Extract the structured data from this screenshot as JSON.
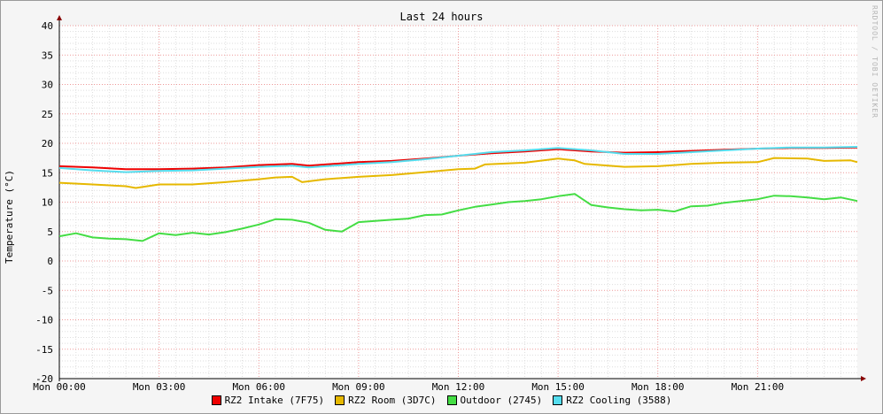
{
  "chart_data": {
    "type": "line",
    "title": "Last 24 hours",
    "ylabel": "Temperature (°C)",
    "xlabel": "",
    "watermark": "RRDTOOL / TOBI OETIKER",
    "ylim": [
      -20,
      40
    ],
    "yticks": [
      "40",
      "35",
      "30",
      "25",
      "20",
      "15",
      "10",
      "5",
      "0",
      "-5",
      "-10",
      "-15",
      "-20"
    ],
    "xlim": [
      0,
      24
    ],
    "xticks": [
      {
        "t": 0,
        "label": "Mon 00:00"
      },
      {
        "t": 3,
        "label": "Mon 03:00"
      },
      {
        "t": 6,
        "label": "Mon 06:00"
      },
      {
        "t": 9,
        "label": "Mon 09:00"
      },
      {
        "t": 12,
        "label": "Mon 12:00"
      },
      {
        "t": 15,
        "label": "Mon 15:00"
      },
      {
        "t": 18,
        "label": "Mon 18:00"
      },
      {
        "t": 21,
        "label": "Mon 21:00"
      }
    ],
    "grid": true,
    "legend_position": "bottom",
    "series": [
      {
        "name": "RZ2 Intake (7F75)",
        "color": "#ee0000",
        "points": [
          [
            0,
            16.1
          ],
          [
            1,
            15.9
          ],
          [
            2,
            15.6
          ],
          [
            3,
            15.6
          ],
          [
            4,
            15.7
          ],
          [
            5,
            15.9
          ],
          [
            6,
            16.3
          ],
          [
            7,
            16.5
          ],
          [
            7.5,
            16.2
          ],
          [
            8,
            16.4
          ],
          [
            9,
            16.8
          ],
          [
            10,
            17.0
          ],
          [
            11,
            17.4
          ],
          [
            12,
            17.9
          ],
          [
            13,
            18.3
          ],
          [
            14,
            18.6
          ],
          [
            15,
            19.0
          ],
          [
            16,
            18.6
          ],
          [
            17,
            18.4
          ],
          [
            18,
            18.5
          ],
          [
            19,
            18.7
          ],
          [
            20,
            18.9
          ],
          [
            21,
            19.1
          ],
          [
            22,
            19.2
          ],
          [
            23,
            19.2
          ],
          [
            24,
            19.3
          ]
        ]
      },
      {
        "name": "RZ2 Room (3D7C)",
        "color": "#e6b800",
        "points": [
          [
            0,
            13.3
          ],
          [
            1,
            13.0
          ],
          [
            2,
            12.7
          ],
          [
            2.3,
            12.4
          ],
          [
            3,
            13.0
          ],
          [
            4,
            13.0
          ],
          [
            5,
            13.4
          ],
          [
            6,
            13.9
          ],
          [
            6.5,
            14.2
          ],
          [
            7,
            14.3
          ],
          [
            7.3,
            13.4
          ],
          [
            8,
            13.9
          ],
          [
            9,
            14.3
          ],
          [
            10,
            14.6
          ],
          [
            11,
            15.1
          ],
          [
            12,
            15.6
          ],
          [
            12.5,
            15.7
          ],
          [
            12.8,
            16.4
          ],
          [
            14,
            16.7
          ],
          [
            15,
            17.4
          ],
          [
            15.5,
            17.1
          ],
          [
            15.8,
            16.5
          ],
          [
            17,
            16.0
          ],
          [
            18,
            16.1
          ],
          [
            19,
            16.5
          ],
          [
            20,
            16.7
          ],
          [
            21,
            16.8
          ],
          [
            21.5,
            17.5
          ],
          [
            22.5,
            17.4
          ],
          [
            23,
            17.0
          ],
          [
            23.8,
            17.1
          ],
          [
            24,
            16.8
          ]
        ]
      },
      {
        "name": "Outdoor (2745)",
        "color": "#44dd44",
        "points": [
          [
            0,
            4.2
          ],
          [
            0.5,
            4.7
          ],
          [
            1,
            4.0
          ],
          [
            1.5,
            3.8
          ],
          [
            2,
            3.7
          ],
          [
            2.5,
            3.4
          ],
          [
            3,
            4.7
          ],
          [
            3.5,
            4.4
          ],
          [
            4,
            4.8
          ],
          [
            4.5,
            4.5
          ],
          [
            5,
            4.9
          ],
          [
            5.5,
            5.5
          ],
          [
            6,
            6.2
          ],
          [
            6.5,
            7.1
          ],
          [
            7,
            7.0
          ],
          [
            7.5,
            6.5
          ],
          [
            8,
            5.3
          ],
          [
            8.5,
            5.0
          ],
          [
            9,
            6.6
          ],
          [
            9.5,
            6.8
          ],
          [
            10,
            7.0
          ],
          [
            10.5,
            7.2
          ],
          [
            11,
            7.8
          ],
          [
            11.5,
            7.9
          ],
          [
            12,
            8.6
          ],
          [
            12.5,
            9.2
          ],
          [
            13,
            9.6
          ],
          [
            13.5,
            10.0
          ],
          [
            14,
            10.2
          ],
          [
            14.5,
            10.5
          ],
          [
            15,
            11.0
          ],
          [
            15.5,
            11.4
          ],
          [
            16,
            9.5
          ],
          [
            16.5,
            9.1
          ],
          [
            17,
            8.8
          ],
          [
            17.5,
            8.6
          ],
          [
            18,
            8.7
          ],
          [
            18.5,
            8.4
          ],
          [
            19,
            9.3
          ],
          [
            19.5,
            9.4
          ],
          [
            20,
            9.9
          ],
          [
            20.5,
            10.2
          ],
          [
            21,
            10.5
          ],
          [
            21.5,
            11.1
          ],
          [
            22,
            11.0
          ],
          [
            22.5,
            10.8
          ],
          [
            23,
            10.5
          ],
          [
            23.5,
            10.8
          ],
          [
            24,
            10.2
          ]
        ]
      },
      {
        "name": "RZ2 Cooling (3588)",
        "color": "#55ddee",
        "points": [
          [
            0,
            15.8
          ],
          [
            1,
            15.4
          ],
          [
            2,
            15.1
          ],
          [
            3,
            15.3
          ],
          [
            4,
            15.4
          ],
          [
            5,
            15.7
          ],
          [
            6,
            16.0
          ],
          [
            7,
            16.2
          ],
          [
            7.5,
            15.9
          ],
          [
            8,
            16.1
          ],
          [
            9,
            16.5
          ],
          [
            10,
            16.8
          ],
          [
            11,
            17.3
          ],
          [
            12,
            17.9
          ],
          [
            13,
            18.5
          ],
          [
            14,
            18.8
          ],
          [
            15,
            19.2
          ],
          [
            16,
            18.8
          ],
          [
            17,
            18.2
          ],
          [
            18,
            18.2
          ],
          [
            19,
            18.5
          ],
          [
            20,
            18.8
          ],
          [
            21,
            19.1
          ],
          [
            22,
            19.3
          ],
          [
            23,
            19.3
          ],
          [
            24,
            19.4
          ]
        ]
      }
    ]
  }
}
